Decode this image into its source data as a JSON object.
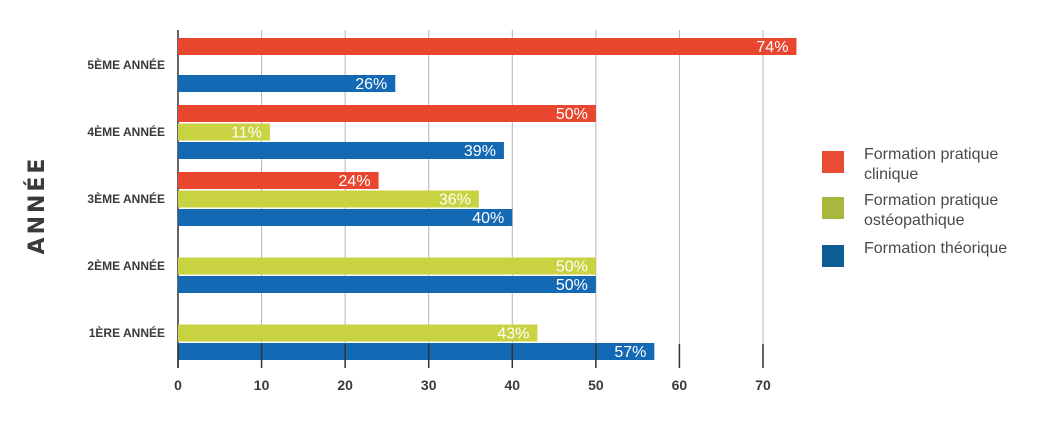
{
  "chart_data": {
    "type": "bar",
    "orientation": "horizontal",
    "title": "",
    "xlabel": "",
    "ylabel": "ANNÉE",
    "xlim": [
      0,
      70
    ],
    "xticks": [
      0,
      10,
      20,
      30,
      40,
      50,
      60,
      70
    ],
    "grid": true,
    "legend_position": "right",
    "categories": [
      "5ÈME ANNÉE",
      "4ÈME ANNÉE",
      "3ÈME ANNÉE",
      "2ÈME ANNÉE",
      "1ÈRE ANNÉE"
    ],
    "series": [
      {
        "name": "Formation pratique clinique",
        "color": "#e8462e",
        "legend_color": "#e84c35",
        "values": [
          74,
          50,
          24,
          null,
          null
        ]
      },
      {
        "name": "Formation pratique ostéopathique",
        "color": "#c9d240",
        "legend_color": "#a8b83f",
        "values": [
          null,
          11,
          36,
          50,
          43
        ]
      },
      {
        "name": "Formation théorique",
        "color": "#1369b4",
        "legend_color": "#0e5e96",
        "values": [
          26,
          39,
          40,
          50,
          57
        ]
      }
    ],
    "value_suffix": "%"
  }
}
